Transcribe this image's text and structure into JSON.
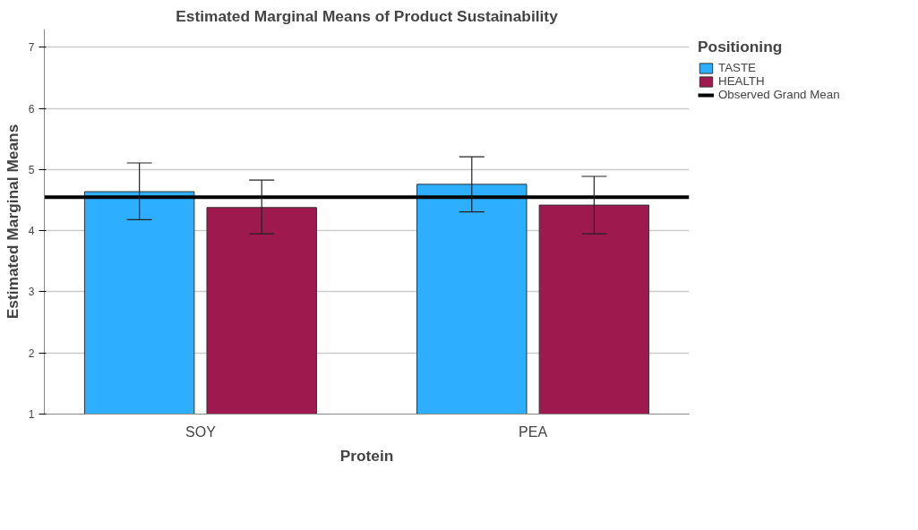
{
  "chart_data": {
    "type": "bar",
    "title": "Estimated Marginal Means of Product Sustainability",
    "xlabel": "Protein",
    "ylabel": "Estimated Marginal Means",
    "legend_title": "Positioning",
    "categories": [
      "SOY",
      "PEA"
    ],
    "series": [
      {
        "name": "TASTE",
        "color": "#2eaefe",
        "values": [
          4.64,
          4.76
        ],
        "errors": [
          [
            4.18,
            5.11
          ],
          [
            4.31,
            5.21
          ]
        ]
      },
      {
        "name": "HEALTH",
        "color": "#9e1a4e",
        "values": [
          4.38,
          4.42
        ],
        "errors": [
          [
            3.95,
            4.83
          ],
          [
            3.95,
            4.89
          ]
        ]
      }
    ],
    "ref_lines": [
      {
        "axis": "y",
        "value": 4.55,
        "label": "Observed Grand Mean",
        "color": "#000000"
      }
    ],
    "ylim": [
      1,
      7.3
    ],
    "yticks": [
      1,
      2,
      3,
      4,
      5,
      6,
      7
    ],
    "grid": "y",
    "legend": "top right"
  }
}
